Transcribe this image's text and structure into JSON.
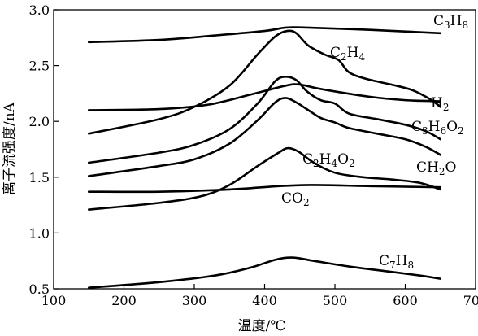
{
  "chart_data": {
    "type": "line",
    "xlabel": "温度/℃",
    "ylabel": "离子流强度/nA",
    "xlim": [
      100,
      700
    ],
    "ylim": [
      0.5,
      3.0
    ],
    "xticks": [
      100,
      200,
      300,
      400,
      500,
      600,
      700
    ],
    "yticks": [
      0.5,
      1.0,
      1.5,
      2.0,
      2.5,
      3.0
    ],
    "xtick_labels": [
      "100",
      "200",
      "300",
      "400",
      "500",
      "600",
      "700"
    ],
    "ytick_labels": [
      "0.5",
      "1.0",
      "1.5",
      "2.0",
      "2.5",
      "3.0"
    ],
    "grid": false,
    "series": [
      {
        "name": "C3H8",
        "label_parts": [
          [
            "C",
            ""
          ],
          [
            "3",
            "sub"
          ],
          [
            "H",
            ""
          ],
          [
            "8",
            "sub"
          ]
        ],
        "points": [
          [
            150,
            2.71
          ],
          [
            250,
            2.73
          ],
          [
            330,
            2.77
          ],
          [
            400,
            2.81
          ],
          [
            430,
            2.84
          ],
          [
            460,
            2.84
          ],
          [
            550,
            2.82
          ],
          [
            650,
            2.79
          ]
        ]
      },
      {
        "name": "C2H4",
        "label_parts": [
          [
            "C",
            ""
          ],
          [
            "2",
            "sub"
          ],
          [
            "H",
            ""
          ],
          [
            "4",
            "sub"
          ]
        ],
        "points": [
          [
            150,
            1.89
          ],
          [
            250,
            2.02
          ],
          [
            300,
            2.13
          ],
          [
            350,
            2.32
          ],
          [
            390,
            2.6
          ],
          [
            415,
            2.76
          ],
          [
            432,
            2.81
          ],
          [
            445,
            2.79
          ],
          [
            462,
            2.68
          ],
          [
            485,
            2.6
          ],
          [
            505,
            2.55
          ],
          [
            520,
            2.44
          ],
          [
            545,
            2.38
          ],
          [
            580,
            2.33
          ],
          [
            610,
            2.28
          ],
          [
            635,
            2.2
          ],
          [
            650,
            2.13
          ]
        ]
      },
      {
        "name": "H2",
        "label_parts": [
          [
            "H",
            ""
          ],
          [
            "2",
            "sub"
          ]
        ],
        "points": [
          [
            150,
            2.1
          ],
          [
            250,
            2.11
          ],
          [
            320,
            2.15
          ],
          [
            380,
            2.24
          ],
          [
            430,
            2.32
          ],
          [
            450,
            2.33
          ],
          [
            480,
            2.29
          ],
          [
            550,
            2.22
          ],
          [
            600,
            2.19
          ],
          [
            650,
            2.18
          ]
        ]
      },
      {
        "name": "C3H6O2",
        "label_parts": [
          [
            "C",
            ""
          ],
          [
            "3",
            "sub"
          ],
          [
            "H",
            ""
          ],
          [
            "6",
            "sub"
          ],
          [
            "O",
            ""
          ],
          [
            "2",
            "sub"
          ]
        ],
        "points": [
          [
            150,
            1.63
          ],
          [
            250,
            1.72
          ],
          [
            300,
            1.79
          ],
          [
            350,
            1.93
          ],
          [
            390,
            2.16
          ],
          [
            415,
            2.36
          ],
          [
            430,
            2.4
          ],
          [
            445,
            2.37
          ],
          [
            460,
            2.27
          ],
          [
            480,
            2.19
          ],
          [
            500,
            2.16
          ],
          [
            520,
            2.07
          ],
          [
            560,
            2.02
          ],
          [
            600,
            1.97
          ],
          [
            630,
            1.91
          ],
          [
            650,
            1.84
          ]
        ]
      },
      {
        "name": "CH2O",
        "label_parts": [
          [
            "CH",
            ""
          ],
          [
            "2",
            "sub"
          ],
          [
            "O",
            ""
          ]
        ],
        "points": [
          [
            150,
            1.51
          ],
          [
            250,
            1.6
          ],
          [
            300,
            1.66
          ],
          [
            350,
            1.8
          ],
          [
            390,
            2.01
          ],
          [
            415,
            2.17
          ],
          [
            430,
            2.21
          ],
          [
            445,
            2.17
          ],
          [
            460,
            2.11
          ],
          [
            480,
            2.03
          ],
          [
            500,
            1.99
          ],
          [
            520,
            1.94
          ],
          [
            560,
            1.89
          ],
          [
            600,
            1.84
          ],
          [
            630,
            1.77
          ],
          [
            650,
            1.7
          ]
        ]
      },
      {
        "name": "C2H4O2",
        "label_parts": [
          [
            "C",
            ""
          ],
          [
            "2",
            "sub"
          ],
          [
            "H",
            ""
          ],
          [
            "4",
            "sub"
          ],
          [
            "O",
            ""
          ],
          [
            "2",
            "sub"
          ]
        ],
        "points": [
          [
            150,
            1.21
          ],
          [
            250,
            1.27
          ],
          [
            310,
            1.33
          ],
          [
            350,
            1.43
          ],
          [
            390,
            1.6
          ],
          [
            420,
            1.72
          ],
          [
            433,
            1.76
          ],
          [
            448,
            1.73
          ],
          [
            470,
            1.63
          ],
          [
            500,
            1.54
          ],
          [
            540,
            1.5
          ],
          [
            580,
            1.48
          ],
          [
            620,
            1.45
          ],
          [
            650,
            1.39
          ]
        ]
      },
      {
        "name": "CO2",
        "label_parts": [
          [
            "CO",
            ""
          ],
          [
            "2",
            "sub"
          ]
        ],
        "points": [
          [
            150,
            1.37
          ],
          [
            250,
            1.37
          ],
          [
            350,
            1.39
          ],
          [
            420,
            1.42
          ],
          [
            470,
            1.43
          ],
          [
            550,
            1.42
          ],
          [
            650,
            1.41
          ]
        ]
      },
      {
        "name": "C7H8",
        "label_parts": [
          [
            "C",
            ""
          ],
          [
            "7",
            "sub"
          ],
          [
            "H",
            ""
          ],
          [
            "8",
            "sub"
          ]
        ],
        "points": [
          [
            150,
            0.51
          ],
          [
            250,
            0.56
          ],
          [
            330,
            0.62
          ],
          [
            380,
            0.69
          ],
          [
            415,
            0.76
          ],
          [
            440,
            0.78
          ],
          [
            470,
            0.75
          ],
          [
            520,
            0.7
          ],
          [
            570,
            0.66
          ],
          [
            620,
            0.62
          ],
          [
            650,
            0.59
          ]
        ]
      }
    ]
  }
}
